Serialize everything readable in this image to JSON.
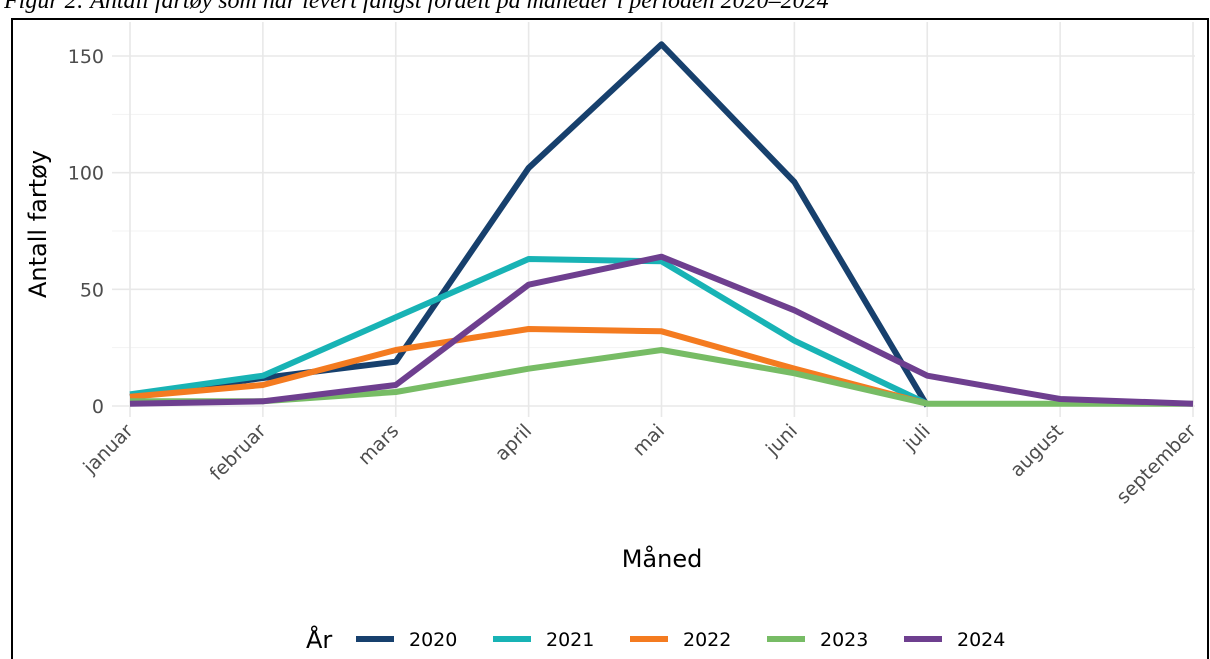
{
  "figure": {
    "caption": "Figur 2: Antall fartøy som har levert fangst fordelt på måneder i perioden 2020–2024"
  },
  "chart_data": {
    "type": "line",
    "xlabel": "Måned",
    "ylabel": "Antall fartøy",
    "categories": [
      "januar",
      "februar",
      "mars",
      "april",
      "mai",
      "juni",
      "juli",
      "august",
      "september"
    ],
    "ylim": [
      -4,
      160
    ],
    "yticks": [
      0,
      50,
      100,
      150
    ],
    "grid": true,
    "legend": {
      "title": "År",
      "position": "bottom"
    },
    "series": [
      {
        "name": "2020",
        "color": "#17406d",
        "values": [
          4,
          12,
          19,
          102,
          155,
          96,
          0,
          null,
          null
        ]
      },
      {
        "name": "2021",
        "color": "#18b3b5",
        "values": [
          5,
          13,
          38,
          63,
          62,
          28,
          1,
          null,
          null
        ]
      },
      {
        "name": "2022",
        "color": "#f47b20",
        "values": [
          4,
          9,
          24,
          33,
          32,
          16,
          1,
          null,
          null
        ]
      },
      {
        "name": "2023",
        "color": "#77bc65",
        "values": [
          2,
          2,
          6,
          16,
          24,
          14,
          1,
          1,
          1
        ]
      },
      {
        "name": "2024",
        "color": "#6e3f8f",
        "values": [
          1,
          2,
          9,
          52,
          64,
          41,
          13,
          3,
          1
        ]
      }
    ]
  }
}
